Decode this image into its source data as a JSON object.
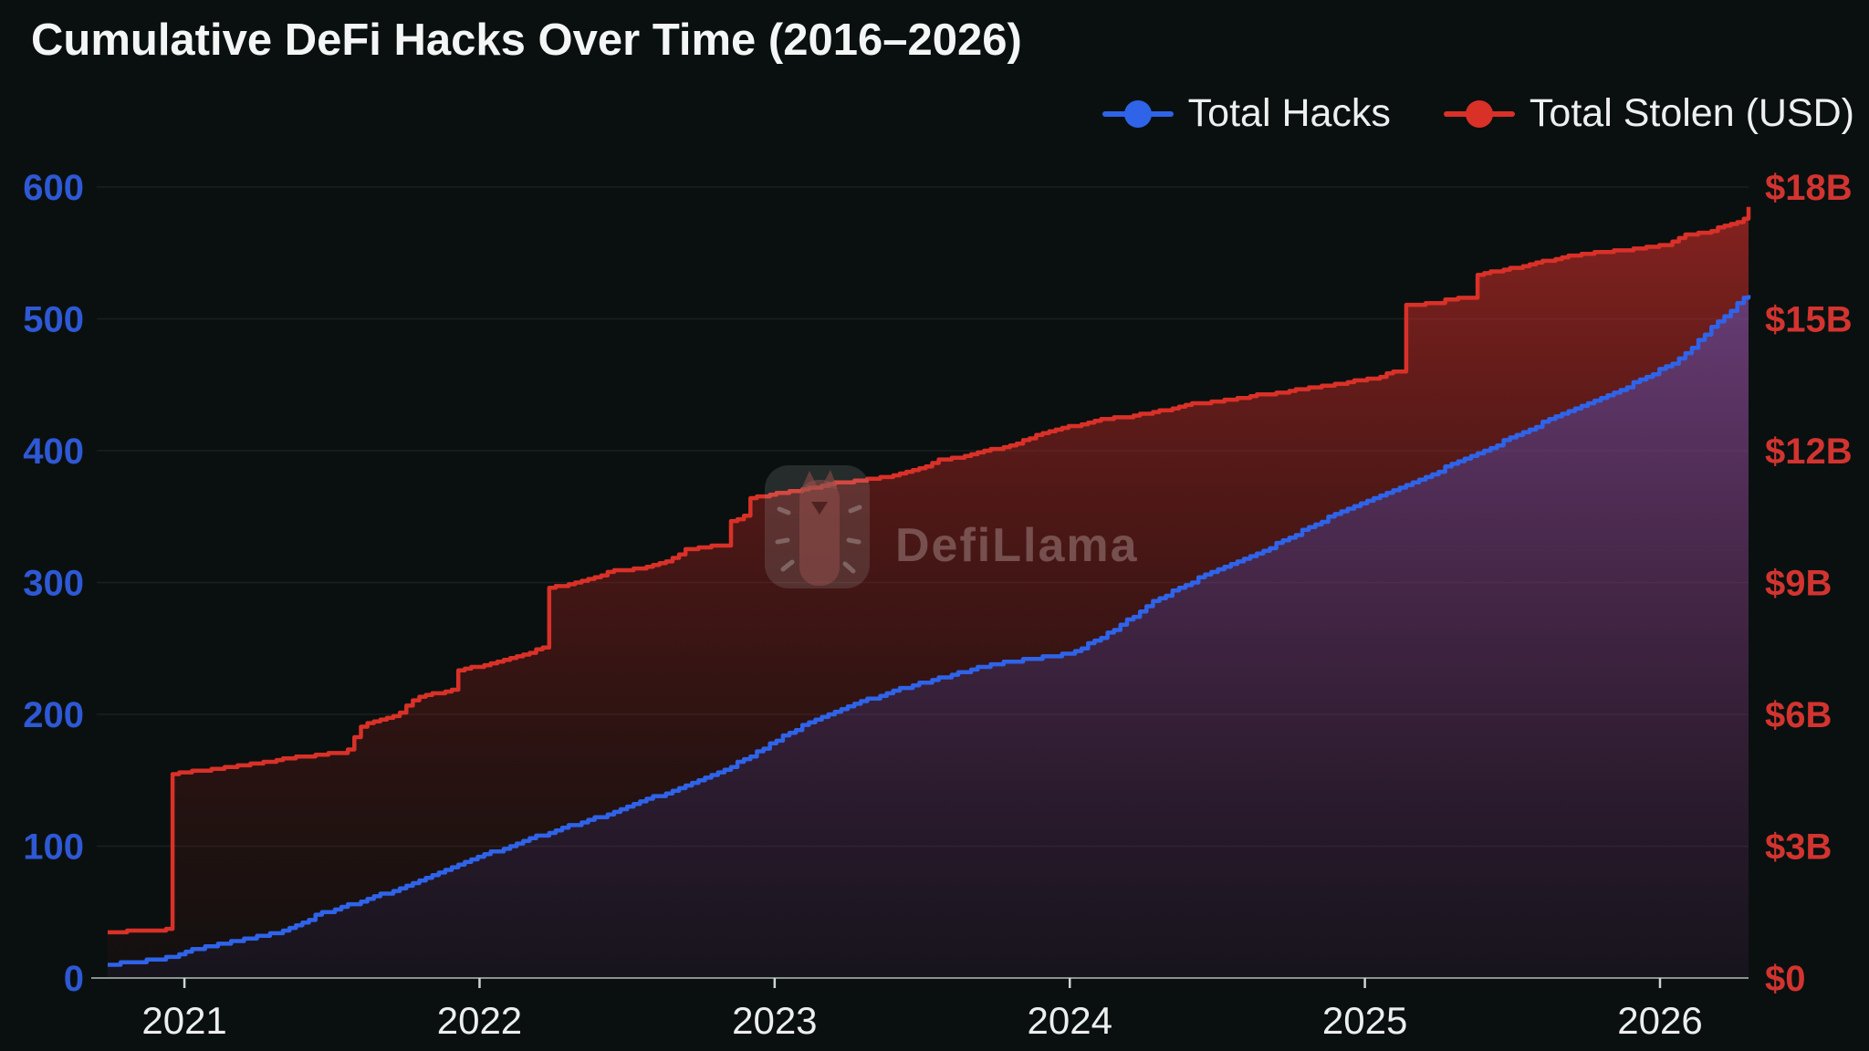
{
  "title": "Cumulative DeFi Hacks Over Time (2016–2026)",
  "legend": [
    {
      "label": "Total Hacks",
      "color": "#2f63e8"
    },
    {
      "label": "Total Stolen (USD)",
      "color": "#d93128"
    }
  ],
  "watermark": {
    "text": "DefiLlama"
  },
  "colors": {
    "background": "#0a100f",
    "title_text": "#f4f6f6",
    "x_label": "#edefef",
    "axis_line": "#8a9392",
    "tick_mark": "#cfd4d3",
    "grid": "rgba(255,255,255,0.07)",
    "left_axis_labels": "#2e58d4",
    "right_axis_labels": "#d23430",
    "hacks_line": "#2f63e8",
    "stolen_line": "#d93128"
  },
  "chart_data": {
    "type": "line",
    "title": "Cumulative DeFi Hacks Over Time (2016–2026)",
    "x_range": [
      2020.74,
      2026.3
    ],
    "x_ticks": [
      2021,
      2022,
      2023,
      2024,
      2025,
      2026
    ],
    "grid": true,
    "legend_position": "top-right",
    "left_axis": {
      "label": "Total Hacks (count)",
      "range": [
        0,
        600
      ],
      "ticks": [
        0,
        100,
        200,
        300,
        400,
        500,
        600
      ],
      "color": "#2e58d4"
    },
    "right_axis": {
      "label": "Total Stolen (USD)",
      "range_usd_b": [
        0,
        18
      ],
      "ticks": [
        "$0",
        "$3B",
        "$6B",
        "$9B",
        "$12B",
        "$15B",
        "$18B"
      ],
      "color": "#d23430"
    },
    "series": [
      {
        "name": "Total Hacks",
        "axis": "left",
        "color": "#2f63e8",
        "unit": "hacks",
        "points": [
          [
            2020.74,
            10
          ],
          [
            2020.85,
            13
          ],
          [
            2020.95,
            16
          ],
          [
            2021.0,
            20
          ],
          [
            2021.1,
            25
          ],
          [
            2021.22,
            30
          ],
          [
            2021.34,
            36
          ],
          [
            2021.45,
            48
          ],
          [
            2021.55,
            55
          ],
          [
            2021.65,
            62
          ],
          [
            2021.75,
            70
          ],
          [
            2021.85,
            78
          ],
          [
            2021.95,
            88
          ],
          [
            2022.0,
            92
          ],
          [
            2022.1,
            100
          ],
          [
            2022.2,
            108
          ],
          [
            2022.3,
            115
          ],
          [
            2022.4,
            122
          ],
          [
            2022.5,
            130
          ],
          [
            2022.6,
            138
          ],
          [
            2022.7,
            146
          ],
          [
            2022.8,
            155
          ],
          [
            2022.9,
            166
          ],
          [
            2023.0,
            180
          ],
          [
            2023.1,
            192
          ],
          [
            2023.2,
            202
          ],
          [
            2023.3,
            210
          ],
          [
            2023.4,
            218
          ],
          [
            2023.5,
            224
          ],
          [
            2023.6,
            230
          ],
          [
            2023.7,
            236
          ],
          [
            2023.8,
            240
          ],
          [
            2023.9,
            243
          ],
          [
            2024.0,
            246
          ],
          [
            2024.1,
            258
          ],
          [
            2024.2,
            272
          ],
          [
            2024.3,
            288
          ],
          [
            2024.45,
            305
          ],
          [
            2024.64,
            322
          ],
          [
            2024.8,
            341
          ],
          [
            2024.9,
            352
          ],
          [
            2025.0,
            362
          ],
          [
            2025.13,
            373
          ],
          [
            2025.3,
            390
          ],
          [
            2025.45,
            405
          ],
          [
            2025.62,
            423
          ],
          [
            2025.83,
            442
          ],
          [
            2026.03,
            465
          ],
          [
            2026.1,
            476
          ],
          [
            2026.18,
            495
          ],
          [
            2026.24,
            507
          ],
          [
            2026.3,
            518
          ]
        ]
      },
      {
        "name": "Total Stolen (USD)",
        "axis": "right",
        "color": "#d93128",
        "unit": "$B",
        "points": [
          [
            2020.74,
            1.05
          ],
          [
            2020.9,
            1.08
          ],
          [
            2020.955,
            1.12
          ],
          [
            2020.958,
            4.65
          ],
          [
            2021.05,
            4.72
          ],
          [
            2021.15,
            4.8
          ],
          [
            2021.25,
            4.9
          ],
          [
            2021.35,
            5.0
          ],
          [
            2021.45,
            5.08
          ],
          [
            2021.55,
            5.15
          ],
          [
            2021.6,
            5.75
          ],
          [
            2021.68,
            5.9
          ],
          [
            2021.72,
            6.0
          ],
          [
            2021.79,
            6.4
          ],
          [
            2021.88,
            6.52
          ],
          [
            2021.915,
            6.6
          ],
          [
            2021.92,
            7.0
          ],
          [
            2022.0,
            7.1
          ],
          [
            2022.09,
            7.25
          ],
          [
            2022.15,
            7.35
          ],
          [
            2022.2,
            7.5
          ],
          [
            2022.215,
            7.52
          ],
          [
            2022.218,
            8.85
          ],
          [
            2022.33,
            9.0
          ],
          [
            2022.36,
            9.05
          ],
          [
            2022.44,
            9.25
          ],
          [
            2022.55,
            9.32
          ],
          [
            2022.64,
            9.5
          ],
          [
            2022.7,
            9.75
          ],
          [
            2022.75,
            9.8
          ],
          [
            2022.838,
            9.85
          ],
          [
            2022.84,
            10.4
          ],
          [
            2022.895,
            10.45
          ],
          [
            2022.9,
            10.9
          ],
          [
            2023.0,
            11.02
          ],
          [
            2023.1,
            11.12
          ],
          [
            2023.19,
            11.25
          ],
          [
            2023.3,
            11.33
          ],
          [
            2023.41,
            11.45
          ],
          [
            2023.5,
            11.6
          ],
          [
            2023.56,
            11.8
          ],
          [
            2023.65,
            11.88
          ],
          [
            2023.71,
            12.0
          ],
          [
            2023.8,
            12.12
          ],
          [
            2023.84,
            12.22
          ],
          [
            2023.9,
            12.4
          ],
          [
            2024.0,
            12.55
          ],
          [
            2024.1,
            12.7
          ],
          [
            2024.22,
            12.8
          ],
          [
            2024.32,
            12.92
          ],
          [
            2024.4,
            13.05
          ],
          [
            2024.52,
            13.15
          ],
          [
            2024.62,
            13.25
          ],
          [
            2024.72,
            13.33
          ],
          [
            2024.83,
            13.45
          ],
          [
            2024.93,
            13.55
          ],
          [
            2025.03,
            13.65
          ],
          [
            2025.1,
            13.8
          ],
          [
            2025.125,
            13.82
          ],
          [
            2025.128,
            15.3
          ],
          [
            2025.25,
            15.38
          ],
          [
            2025.28,
            15.45
          ],
          [
            2025.36,
            15.5
          ],
          [
            2025.365,
            16.0
          ],
          [
            2025.5,
            16.15
          ],
          [
            2025.6,
            16.3
          ],
          [
            2025.7,
            16.45
          ],
          [
            2025.8,
            16.52
          ],
          [
            2025.92,
            16.6
          ],
          [
            2026.02,
            16.68
          ],
          [
            2026.08,
            16.9
          ],
          [
            2026.16,
            16.98
          ],
          [
            2026.22,
            17.12
          ],
          [
            2026.27,
            17.2
          ],
          [
            2026.285,
            17.28
          ],
          [
            2026.295,
            17.55
          ],
          [
            2026.3,
            17.55
          ]
        ]
      }
    ]
  }
}
